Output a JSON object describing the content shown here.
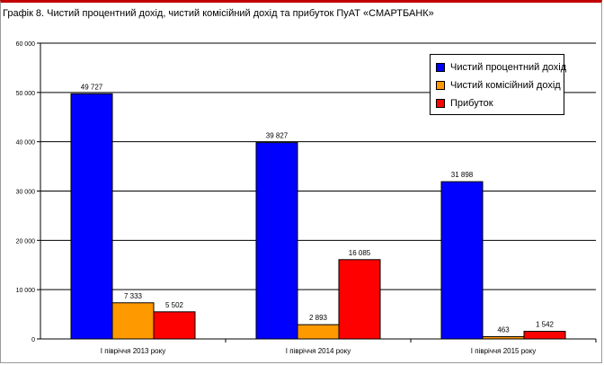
{
  "chart_data": {
    "type": "bar",
    "title": "Графік 8. Чистий процентний дохід, чистий комісійний дохід та прибуток ПуАТ «СМАРТБАНК»",
    "categories": [
      "I півріччя 2013 року",
      "I півріччя 2014 року",
      "I півріччя 2015 року"
    ],
    "series": [
      {
        "name": "Чистий процентний дохід",
        "values": [
          49727,
          39827,
          31898
        ],
        "labels": [
          "49 727",
          "39 827",
          "31 898"
        ],
        "color": "#0000ff"
      },
      {
        "name": "Чистий комісійний дохід",
        "values": [
          7333,
          2893,
          463
        ],
        "labels": [
          "7 333",
          "2 893",
          "463"
        ],
        "color": "#ff9900"
      },
      {
        "name": "Прибуток",
        "values": [
          5502,
          16085,
          1542
        ],
        "labels": [
          "5 502",
          "16 085",
          "1 542"
        ],
        "color": "#ff0000"
      }
    ],
    "ylim": [
      0,
      60000
    ],
    "yticks": [
      0,
      10000,
      20000,
      30000,
      40000,
      50000,
      60000
    ],
    "ytick_labels": [
      "0",
      "10 000",
      "20 000",
      "30 000",
      "40 000",
      "50 000",
      "60 000"
    ],
    "grid": true,
    "legend_position": "top-right"
  }
}
